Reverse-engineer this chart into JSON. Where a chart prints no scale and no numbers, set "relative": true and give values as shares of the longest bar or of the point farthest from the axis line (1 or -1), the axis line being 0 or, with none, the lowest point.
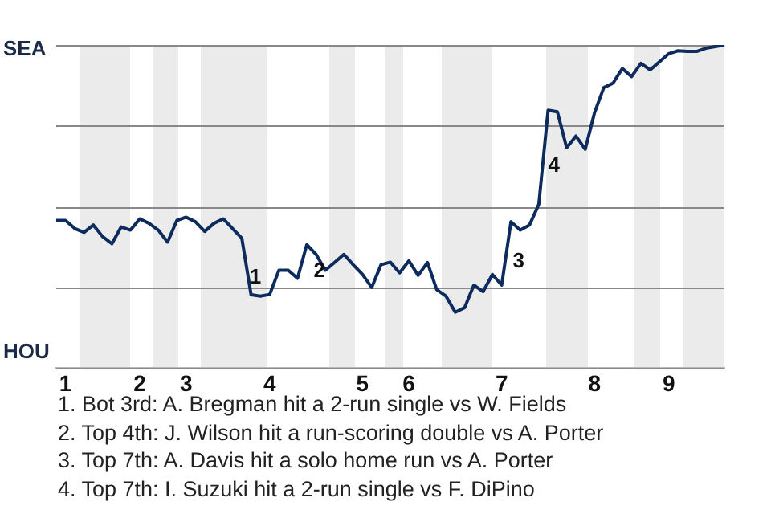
{
  "chart_data": {
    "type": "line",
    "relative": true,
    "categories": [
      null,
      "1",
      null,
      null,
      null,
      null,
      null,
      null,
      null,
      "2",
      null,
      null,
      null,
      null,
      "3",
      null,
      null,
      null,
      null,
      null,
      null,
      null,
      null,
      "4",
      null,
      null,
      null,
      null,
      null,
      null,
      null,
      null,
      null,
      "5",
      null,
      null,
      null,
      null,
      "6",
      null,
      null,
      null,
      null,
      null,
      null,
      null,
      null,
      null,
      "7",
      null,
      null,
      null,
      null,
      null,
      null,
      null,
      null,
      null,
      "8",
      null,
      null,
      null,
      null,
      null,
      null,
      null,
      "9",
      null,
      null,
      null,
      null,
      null,
      null
    ],
    "series": [
      {
        "color": "#0d2b5c",
        "values": [
          0.457,
          0.457,
          0.432,
          0.42,
          0.443,
          0.407,
          0.385,
          0.437,
          0.427,
          0.462,
          0.448,
          0.427,
          0.39,
          0.457,
          0.467,
          0.453,
          0.423,
          0.448,
          0.462,
          0.432,
          0.402,
          0.227,
          0.223,
          0.228,
          0.303,
          0.303,
          0.278,
          0.382,
          0.352,
          0.303,
          0.327,
          0.352,
          0.32,
          0.29,
          0.25,
          0.32,
          0.328,
          0.295,
          0.332,
          0.287,
          0.327,
          0.243,
          0.223,
          0.173,
          0.187,
          0.257,
          0.237,
          0.29,
          0.257,
          0.453,
          0.427,
          0.443,
          0.507,
          0.798,
          0.793,
          0.682,
          0.718,
          0.677,
          0.79,
          0.868,
          0.882,
          0.927,
          0.902,
          0.943,
          0.923,
          0.948,
          0.973,
          0.982,
          0.98,
          0.98,
          0.99,
          0.995,
          1
        ]
      }
    ],
    "grid": "y",
    "legend": false,
    "marker": "none",
    "line_style": "solid",
    "annotations": [
      "SEA",
      "HOU",
      "1",
      "2",
      "3",
      "4",
      "1. Bot 3rd: A. Bregman hit a 2-run single vs W. Fields",
      "2. Top 4th: J. Wilson hit a run-scoring double vs A. Porter",
      "3. Top 7th: A. Davis hit a solo home run vs A. Porter",
      "4. Top 7th: I. Suzuki hit a 2-run single vs F. DiPino"
    ]
  }
}
